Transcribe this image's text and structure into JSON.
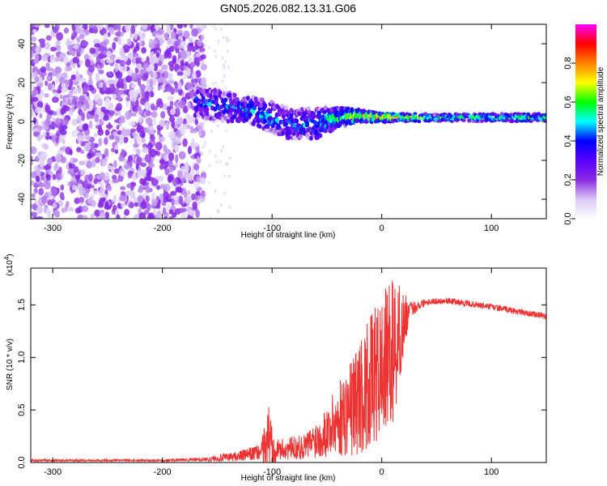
{
  "title": "GN05.2026.082.13.31.G06",
  "chart_data": [
    {
      "type": "heatmap",
      "name": "spectrogram",
      "xlabel": "Height of straight line (km)",
      "ylabel": "Frequency (Hz)",
      "xlim": [
        -320,
        150
      ],
      "ylim": [
        -50,
        50
      ],
      "xticks": [
        -300,
        -200,
        -100,
        0,
        100
      ],
      "yticks": [
        -40,
        -20,
        0,
        20,
        40
      ],
      "noise_region": [
        -320,
        -168
      ],
      "signal_ridge": [
        {
          "x": -170,
          "center": 10,
          "spread": 8,
          "level": 0.35
        },
        {
          "x": -150,
          "center": 8,
          "spread": 8,
          "level": 0.4
        },
        {
          "x": -120,
          "center": 6,
          "spread": 7,
          "level": 0.45
        },
        {
          "x": -100,
          "center": 2,
          "spread": 8,
          "level": 0.45
        },
        {
          "x": -80,
          "center": -2,
          "spread": 8,
          "level": 0.4
        },
        {
          "x": -60,
          "center": -1,
          "spread": 8,
          "level": 0.45
        },
        {
          "x": -40,
          "center": 2,
          "spread": 5,
          "level": 0.55
        },
        {
          "x": -20,
          "center": 3,
          "spread": 3,
          "level": 0.7
        },
        {
          "x": 0,
          "center": 2,
          "spread": 2,
          "level": 0.8
        },
        {
          "x": 50,
          "center": 2,
          "spread": 2,
          "level": 0.55
        },
        {
          "x": 150,
          "center": 2,
          "spread": 2,
          "level": 0.55
        }
      ],
      "colorbar": {
        "label": "Normalized spectral amplitude",
        "range": [
          0,
          1
        ],
        "ticks": [
          "0.0",
          "0.2",
          "0.4",
          "0.6",
          "0.8"
        ],
        "tick_values": [
          0.0,
          0.2,
          0.4,
          0.6,
          0.8
        ],
        "colors": [
          "#ffffff",
          "#d9c8f5",
          "#8a2be2",
          "#5a00ff",
          "#0000ff",
          "#00ffff",
          "#00ff00",
          "#ffff00",
          "#ff8000",
          "#ff0000",
          "#ff00ff"
        ]
      }
    },
    {
      "type": "line",
      "name": "snr",
      "xlabel": "Height of straight line (km)",
      "ylabel": "SNR (10 * v/v)",
      "yscale_label": "(x10",
      "yscale_exp": "4",
      "yscale_close": ")",
      "xlim": [
        -320,
        150
      ],
      "ylim": [
        0,
        1.85
      ],
      "xticks": [
        -300,
        -200,
        -100,
        0,
        100
      ],
      "yticks": [
        "0.0",
        "0.5",
        "1.0",
        "1.5"
      ],
      "ytick_values": [
        0.0,
        0.5,
        1.0,
        1.5
      ],
      "color": "#ee3333",
      "envelope": [
        {
          "x": -320,
          "base": 0.02,
          "amp": 0.01
        },
        {
          "x": -200,
          "base": 0.02,
          "amp": 0.01
        },
        {
          "x": -160,
          "base": 0.03,
          "amp": 0.02
        },
        {
          "x": -130,
          "base": 0.06,
          "amp": 0.05
        },
        {
          "x": -110,
          "base": 0.1,
          "amp": 0.08
        },
        {
          "x": -103,
          "base": 0.25,
          "amp": 0.35
        },
        {
          "x": -95,
          "base": 0.12,
          "amp": 0.1
        },
        {
          "x": -70,
          "base": 0.15,
          "amp": 0.12
        },
        {
          "x": -50,
          "base": 0.3,
          "amp": 0.25
        },
        {
          "x": -30,
          "base": 0.5,
          "amp": 0.45
        },
        {
          "x": -15,
          "base": 0.7,
          "amp": 0.6
        },
        {
          "x": 0,
          "base": 0.9,
          "amp": 0.7
        },
        {
          "x": 12,
          "base": 1.1,
          "amp": 0.7
        },
        {
          "x": 25,
          "base": 1.45,
          "amp": 0.08
        },
        {
          "x": 40,
          "base": 1.53,
          "amp": 0.03
        },
        {
          "x": 60,
          "base": 1.54,
          "amp": 0.03
        },
        {
          "x": 100,
          "base": 1.48,
          "amp": 0.03
        },
        {
          "x": 150,
          "base": 1.39,
          "amp": 0.03
        }
      ]
    }
  ]
}
